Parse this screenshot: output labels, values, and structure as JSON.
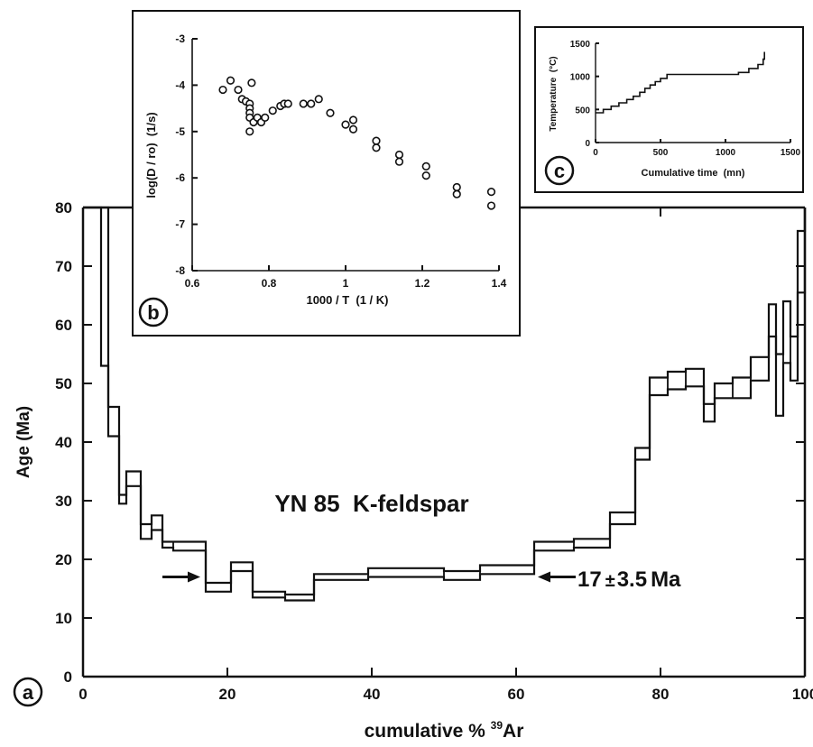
{
  "chart_data": [
    {
      "id": "a",
      "type": "line",
      "panel_letter": "a",
      "title": "YN 85  K-feldspar",
      "xlabel_prefix": "cumulative % ",
      "xlabel_sup": "39",
      "xlabel_suffix": "Ar",
      "ylabel": "Age (Ma)",
      "xlim": [
        0,
        100
      ],
      "ylim": [
        0,
        80
      ],
      "xticks": [
        0,
        20,
        40,
        60,
        80,
        100
      ],
      "yticks": [
        0,
        10,
        20,
        30,
        40,
        50,
        60,
        70,
        80
      ],
      "annotation": {
        "text_value": "17",
        "text_pm": "±",
        "text_error": "3.5",
        "text_unit": "Ma",
        "age": 17,
        "error": 3.5,
        "left_arrow_x": 17,
        "right_arrow_x": 62,
        "arrow_y": 17
      },
      "series": [
        {
          "edges": [
            0,
            2.5,
            3.5,
            5,
            6,
            8,
            9.5,
            11,
            12.5,
            17,
            20.5,
            23.5,
            28,
            32,
            39.5,
            50,
            55,
            62.5,
            68,
            73,
            76.5,
            78.5,
            81,
            83.5,
            86,
            87.5,
            90,
            92.5,
            95,
            96,
            97,
            98,
            99,
            100
          ],
          "upper": [
            80,
            80,
            46,
            31,
            35,
            26,
            27.5,
            23,
            23,
            16,
            19.5,
            14.5,
            14,
            17.5,
            18.5,
            18,
            19,
            23,
            23.5,
            28,
            39,
            51,
            52,
            52.5,
            46.5,
            50,
            51,
            54.5,
            63.5,
            55,
            64,
            58,
            76,
            80
          ],
          "lower": [
            80,
            53,
            41,
            29.5,
            32.5,
            23.5,
            25,
            22,
            21.5,
            14.5,
            18,
            13.5,
            13,
            16.5,
            17,
            16.5,
            17.5,
            21.5,
            22,
            26,
            37,
            48,
            49,
            49.5,
            43.5,
            47.5,
            47.5,
            50.5,
            58,
            44.5,
            53.5,
            50.5,
            65.5,
            80
          ]
        }
      ]
    },
    {
      "id": "b",
      "type": "scatter",
      "panel_letter": "b",
      "xlabel": "1000 / T  (1 / K)",
      "ylabel": "log(D / ro)  (1/s)",
      "xlim": [
        0.6,
        1.4
      ],
      "ylim": [
        -8,
        -3
      ],
      "xtick_values": [
        0.6,
        0.8,
        1.0,
        1.2,
        1.4
      ],
      "xtick_labels": [
        "0.6",
        "0.8",
        "1",
        "1.2",
        "1.4"
      ],
      "yticks": [
        -3,
        -4,
        -5,
        -6,
        -7,
        -8
      ],
      "points": [
        [
          0.68,
          -4.1
        ],
        [
          0.7,
          -3.9
        ],
        [
          0.72,
          -4.1
        ],
        [
          0.73,
          -4.3
        ],
        [
          0.74,
          -4.35
        ],
        [
          0.75,
          -4.4
        ],
        [
          0.75,
          -4.5
        ],
        [
          0.75,
          -4.6
        ],
        [
          0.75,
          -4.7
        ],
        [
          0.75,
          -5.0
        ],
        [
          0.755,
          -3.95
        ],
        [
          0.76,
          -4.8
        ],
        [
          0.77,
          -4.7
        ],
        [
          0.78,
          -4.8
        ],
        [
          0.79,
          -4.7
        ],
        [
          0.81,
          -4.55
        ],
        [
          0.83,
          -4.45
        ],
        [
          0.84,
          -4.4
        ],
        [
          0.85,
          -4.4
        ],
        [
          0.89,
          -4.4
        ],
        [
          0.91,
          -4.4
        ],
        [
          0.93,
          -4.3
        ],
        [
          0.96,
          -4.6
        ],
        [
          1.0,
          -4.85
        ],
        [
          1.02,
          -4.75
        ],
        [
          1.02,
          -4.95
        ],
        [
          1.08,
          -5.2
        ],
        [
          1.08,
          -5.35
        ],
        [
          1.14,
          -5.5
        ],
        [
          1.14,
          -5.65
        ],
        [
          1.21,
          -5.75
        ],
        [
          1.21,
          -5.95
        ],
        [
          1.29,
          -6.2
        ],
        [
          1.29,
          -6.35
        ],
        [
          1.38,
          -6.3
        ],
        [
          1.38,
          -6.6
        ]
      ]
    },
    {
      "id": "c",
      "type": "line",
      "panel_letter": "c",
      "xlabel": "Cumulative time  (mn)",
      "ylabel": "Temperature  (°C)",
      "xlim": [
        0,
        1500
      ],
      "ylim": [
        0,
        1500
      ],
      "xticks": [
        0,
        500,
        1000,
        1500
      ],
      "yticks": [
        0,
        500,
        1000,
        1500
      ],
      "steps": [
        [
          0,
          450
        ],
        [
          60,
          500
        ],
        [
          120,
          550
        ],
        [
          180,
          600
        ],
        [
          240,
          650
        ],
        [
          290,
          700
        ],
        [
          340,
          760
        ],
        [
          380,
          820
        ],
        [
          420,
          870
        ],
        [
          460,
          920
        ],
        [
          500,
          970
        ],
        [
          550,
          1030
        ],
        [
          1100,
          1060
        ],
        [
          1180,
          1120
        ],
        [
          1250,
          1180
        ],
        [
          1290,
          1260
        ],
        [
          1300,
          1370
        ]
      ]
    }
  ]
}
